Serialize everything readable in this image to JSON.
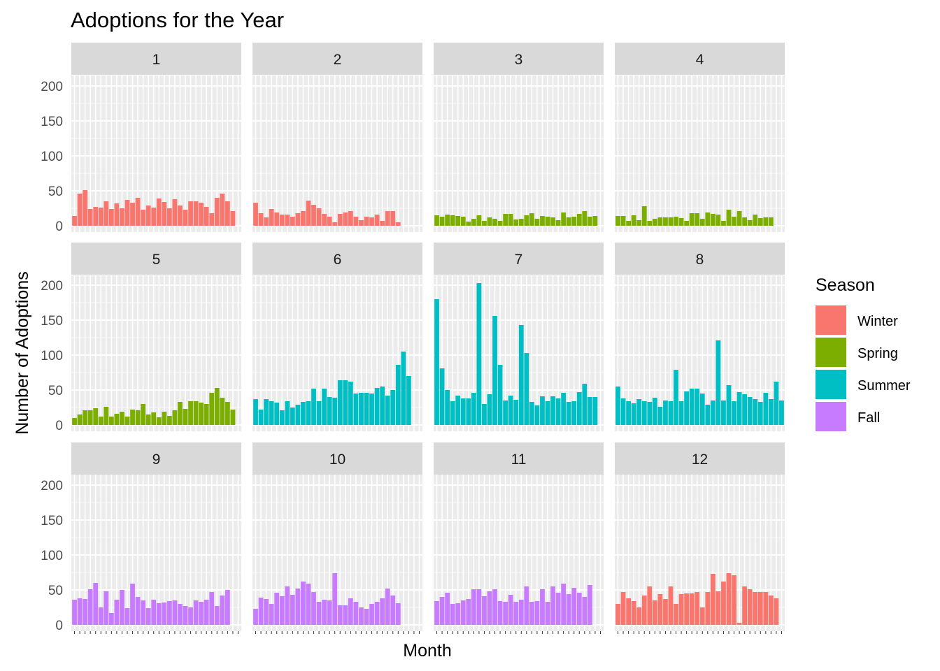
{
  "chart_data": {
    "type": "bar",
    "title": "Adoptions for the Year",
    "xlabel": "Month",
    "ylabel": "Number of Adoptions",
    "ylim": [
      0,
      220
    ],
    "yticks": [
      0,
      50,
      100,
      150,
      200
    ],
    "grid": true,
    "legend": {
      "title": "Season",
      "position": "right",
      "items": [
        {
          "label": "Winter",
          "color": "#F8766D"
        },
        {
          "label": "Spring",
          "color": "#7CAE00"
        },
        {
          "label": "Summer",
          "color": "#00BFC4"
        },
        {
          "label": "Fall",
          "color": "#C77CFF"
        }
      ]
    },
    "facets": [
      {
        "label": "1",
        "season": "Winter",
        "values": [
          14,
          46,
          51,
          24,
          27,
          26,
          35,
          24,
          32,
          25,
          37,
          33,
          40,
          23,
          29,
          26,
          39,
          34,
          25,
          38,
          29,
          23,
          35,
          35,
          33,
          27,
          18,
          40,
          46,
          35,
          21
        ]
      },
      {
        "label": "2",
        "season": "Winter",
        "values": [
          33,
          18,
          12,
          24,
          19,
          16,
          16,
          13,
          18,
          21,
          36,
          30,
          25,
          17,
          13,
          5,
          17,
          19,
          21,
          13,
          8,
          13,
          12,
          16,
          7,
          21,
          21,
          5
        ]
      },
      {
        "label": "3",
        "season": "Spring",
        "values": [
          15,
          13,
          16,
          15,
          14,
          13,
          6,
          10,
          15,
          7,
          12,
          10,
          7,
          17,
          17,
          9,
          10,
          15,
          18,
          10,
          14,
          13,
          12,
          8,
          19,
          12,
          13,
          17,
          21,
          13,
          14
        ]
      },
      {
        "label": "4",
        "season": "Spring",
        "values": [
          14,
          14,
          7,
          15,
          8,
          28,
          7,
          10,
          12,
          12,
          12,
          13,
          11,
          7,
          18,
          18,
          10,
          19,
          17,
          16,
          7,
          23,
          13,
          21,
          12,
          8,
          16,
          11,
          12,
          12
        ]
      },
      {
        "label": "5",
        "season": "Spring",
        "values": [
          10,
          15,
          21,
          21,
          24,
          12,
          26,
          12,
          16,
          19,
          12,
          22,
          21,
          30,
          15,
          18,
          11,
          19,
          13,
          21,
          33,
          23,
          34,
          34,
          32,
          30,
          46,
          53,
          39,
          33,
          22
        ]
      },
      {
        "label": "6",
        "season": "Summer",
        "values": [
          37,
          22,
          37,
          34,
          32,
          21,
          34,
          25,
          29,
          33,
          34,
          52,
          34,
          52,
          40,
          39,
          64,
          64,
          62,
          45,
          46,
          46,
          45,
          53,
          55,
          42,
          50,
          86,
          105,
          70
        ]
      },
      {
        "label": "7",
        "season": "Summer",
        "values": [
          180,
          81,
          50,
          34,
          42,
          38,
          38,
          46,
          203,
          30,
          44,
          156,
          86,
          35,
          42,
          36,
          143,
          103,
          33,
          28,
          41,
          34,
          41,
          38,
          46,
          33,
          34,
          47,
          59,
          40,
          40
        ]
      },
      {
        "label": "8",
        "season": "Summer",
        "values": [
          55,
          38,
          34,
          31,
          37,
          34,
          33,
          39,
          26,
          35,
          34,
          79,
          34,
          48,
          52,
          52,
          45,
          29,
          35,
          121,
          35,
          57,
          34,
          47,
          44,
          40,
          37,
          33,
          46,
          37,
          62,
          35
        ]
      },
      {
        "label": "9",
        "season": "Fall",
        "values": [
          36,
          38,
          37,
          51,
          60,
          25,
          48,
          17,
          36,
          50,
          24,
          59,
          40,
          35,
          24,
          36,
          31,
          32,
          34,
          35,
          30,
          27,
          25,
          35,
          33,
          36,
          47,
          27,
          42,
          50
        ]
      },
      {
        "label": "10",
        "season": "Fall",
        "values": [
          23,
          39,
          37,
          30,
          46,
          41,
          55,
          43,
          52,
          62,
          59,
          47,
          33,
          36,
          35,
          74,
          28,
          28,
          38,
          33,
          25,
          23,
          30,
          33,
          38,
          52,
          42,
          31
        ]
      },
      {
        "label": "11",
        "season": "Fall",
        "values": [
          34,
          40,
          46,
          30,
          31,
          35,
          37,
          51,
          51,
          41,
          48,
          51,
          34,
          33,
          43,
          33,
          36,
          55,
          33,
          34,
          51,
          33,
          55,
          46,
          59,
          44,
          53,
          46,
          40,
          57
        ]
      },
      {
        "label": "12",
        "season": "Winter",
        "values": [
          30,
          47,
          38,
          34,
          25,
          42,
          55,
          35,
          44,
          37,
          55,
          30,
          44,
          45,
          45,
          47,
          25,
          47,
          73,
          48,
          62,
          74,
          71,
          3,
          55,
          51,
          47,
          47,
          47,
          42,
          38
        ]
      }
    ]
  }
}
